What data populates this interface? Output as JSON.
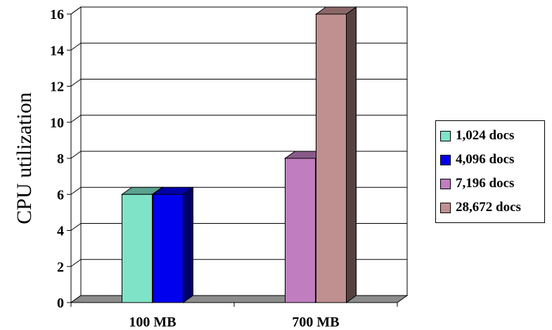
{
  "chart_data": {
    "type": "bar",
    "title": "",
    "xlabel": "",
    "ylabel": "CPU utilization",
    "ylim": [
      0,
      16
    ],
    "yticks": [
      0,
      2,
      4,
      6,
      8,
      10,
      12,
      14,
      16
    ],
    "categories": [
      "100 MB",
      "700 MB"
    ],
    "grid": true,
    "legend_position": "right",
    "series": [
      {
        "name": "1,024 docs",
        "color": "#7fe3c8",
        "values": [
          6,
          null
        ]
      },
      {
        "name": "4,096 docs",
        "color": "#0000ee",
        "values": [
          6,
          null
        ]
      },
      {
        "name": "7,196 docs",
        "color": "#c07ec0",
        "values": [
          null,
          8
        ]
      },
      {
        "name": "28,672 docs",
        "color": "#c09090",
        "values": [
          null,
          16
        ]
      }
    ]
  }
}
